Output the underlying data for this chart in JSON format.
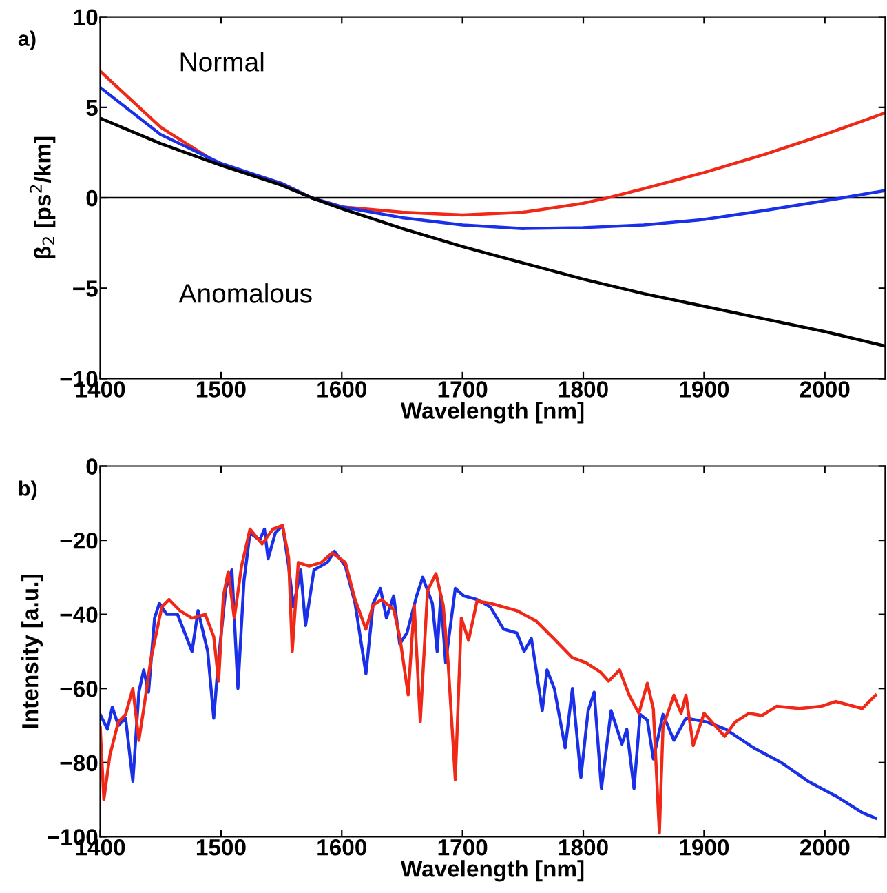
{
  "chart_data": [
    {
      "type": "line",
      "xlabel": "Wavelength [nm]",
      "ylabel": "β$_{2}$ [ps$^{2}$/km]",
      "annotations": [
        "a)",
        "Normal",
        "Anomalous"
      ],
      "xlim": [
        1400,
        2050
      ],
      "xticks": [
        1400,
        1500,
        1600,
        1700,
        1800,
        1900,
        2000
      ],
      "ylim": [
        -10,
        10
      ],
      "yticks": [
        -10,
        -5,
        0,
        5,
        10
      ],
      "grid": false,
      "legend": false,
      "marker": "none",
      "line_style": "solid",
      "ref_lines": [
        {
          "axis": "y",
          "value": 0,
          "color": "#000000"
        }
      ],
      "series": [
        {
          "color": "#f02818",
          "x": [
            1400,
            1450,
            1500,
            1550,
            1575,
            1600,
            1650,
            1700,
            1750,
            1800,
            1820,
            1850,
            1900,
            1950,
            2000,
            2050
          ],
          "values": [
            7.0,
            3.9,
            1.8,
            0.8,
            0.0,
            -0.5,
            -0.8,
            -0.95,
            -0.8,
            -0.3,
            0.0,
            0.5,
            1.4,
            2.4,
            3.5,
            4.7
          ]
        },
        {
          "color": "#1a30e8",
          "x": [
            1400,
            1450,
            1500,
            1550,
            1575,
            1600,
            1650,
            1700,
            1750,
            1800,
            1850,
            1900,
            1950,
            2015,
            2050
          ],
          "values": [
            6.1,
            3.5,
            1.9,
            0.8,
            0.0,
            -0.5,
            -1.1,
            -1.5,
            -1.7,
            -1.65,
            -1.5,
            -1.2,
            -0.7,
            0.0,
            0.4
          ]
        },
        {
          "color": "#000000",
          "x": [
            1400,
            1450,
            1500,
            1550,
            1575,
            1600,
            1650,
            1700,
            1750,
            1800,
            1850,
            1900,
            1950,
            2000,
            2050
          ],
          "values": [
            4.4,
            3.0,
            1.8,
            0.7,
            0.0,
            -0.6,
            -1.7,
            -2.7,
            -3.6,
            -4.5,
            -5.3,
            -6.0,
            -6.7,
            -7.4,
            -8.2
          ]
        }
      ]
    },
    {
      "type": "line",
      "xlabel": "Wavelength [nm]",
      "ylabel": "Intensity [a.u.]",
      "annotations": [
        "b)"
      ],
      "xlim": [
        1400,
        2050
      ],
      "xticks": [
        1400,
        1500,
        1600,
        1700,
        1800,
        1900,
        2000
      ],
      "ylim": [
        -100,
        0
      ],
      "yticks": [
        -100,
        -80,
        -60,
        -40,
        -20,
        0
      ],
      "grid": false,
      "legend": false,
      "marker": "none",
      "line_style": "solid",
      "series": [
        {
          "color": "#1a30e8",
          "x": [
            1400,
            1406,
            1410,
            1415,
            1421,
            1427,
            1432,
            1436,
            1440,
            1445,
            1449,
            1455,
            1464,
            1476,
            1481,
            1489,
            1494,
            1498,
            1504,
            1509,
            1514,
            1519,
            1524,
            1532,
            1536,
            1539,
            1545,
            1551,
            1556,
            1560,
            1566,
            1570,
            1577,
            1588,
            1594,
            1603,
            1611,
            1620,
            1626,
            1632,
            1637,
            1643,
            1648,
            1654,
            1662,
            1667,
            1675,
            1679,
            1682,
            1686,
            1694,
            1701,
            1712,
            1723,
            1734,
            1745,
            1751,
            1757,
            1761,
            1766,
            1770,
            1776,
            1785,
            1791,
            1798,
            1804,
            1809,
            1815,
            1823,
            1832,
            1836,
            1842,
            1847,
            1853,
            1858,
            1866,
            1875,
            1885,
            1902,
            1918,
            1941,
            1964,
            1986,
            2009,
            2031,
            2042
          ],
          "values": [
            -67,
            -71,
            -65,
            -70,
            -68,
            -85,
            -61,
            -55,
            -61,
            -41,
            -37,
            -40,
            -40,
            -50,
            -39,
            -50,
            -68,
            -52,
            -33,
            -28,
            -60,
            -31,
            -18,
            -20,
            -17,
            -25,
            -18,
            -16,
            -27,
            -38,
            -28,
            -43,
            -28,
            -26,
            -23,
            -27,
            -37,
            -56,
            -37,
            -33,
            -41,
            -35,
            -48,
            -45,
            -35,
            -30,
            -37,
            -50,
            -35,
            -53,
            -33,
            -35,
            -36,
            -38,
            -44,
            -45,
            -50,
            -46.5,
            -55,
            -66,
            -55,
            -60,
            -76,
            -60,
            -84,
            -66,
            -61,
            -87,
            -66,
            -75,
            -71,
            -87,
            -67,
            -68.5,
            -79,
            -67,
            -74,
            -68,
            -69,
            -71,
            -76,
            -80,
            -85,
            -89,
            -93.5,
            -95
          ]
        },
        {
          "color": "#f02818",
          "x": [
            1400,
            1403,
            1408,
            1415,
            1421,
            1427,
            1432,
            1436,
            1442,
            1451,
            1457,
            1466,
            1476,
            1487,
            1494,
            1498,
            1502,
            1506,
            1511,
            1517,
            1524,
            1534,
            1543,
            1551,
            1556,
            1559,
            1564,
            1573,
            1583,
            1592,
            1603,
            1611,
            1620,
            1626,
            1633,
            1643,
            1648,
            1655,
            1660,
            1665,
            1671,
            1678,
            1684,
            1688,
            1694,
            1699,
            1705,
            1712,
            1723,
            1745,
            1761,
            1776,
            1791,
            1802,
            1814,
            1821,
            1830,
            1838,
            1846,
            1853,
            1858,
            1863,
            1866,
            1875,
            1881,
            1885,
            1891,
            1900,
            1917,
            1926,
            1937,
            1948,
            1960,
            1979,
            1997,
            2009,
            2031,
            2042
          ],
          "values": [
            -70.6,
            -90,
            -78,
            -69,
            -67,
            -60,
            -74,
            -65.5,
            -52,
            -38,
            -36,
            -39,
            -41,
            -40,
            -46,
            -58,
            -35,
            -28.5,
            -41,
            -27,
            -17,
            -21,
            -17,
            -16,
            -24.7,
            -50,
            -26,
            -27,
            -26,
            -23.4,
            -26,
            -36,
            -44,
            -37.5,
            -36,
            -38.7,
            -46,
            -61.7,
            -37.5,
            -69,
            -33.6,
            -29,
            -37.5,
            -52.7,
            -84.6,
            -41,
            -47,
            -36.4,
            -37,
            -39,
            -41.8,
            -46.7,
            -51.7,
            -53,
            -55.5,
            -58,
            -55,
            -61.8,
            -66.7,
            -58.6,
            -65.5,
            -99,
            -70.4,
            -61.8,
            -66.7,
            -61.8,
            -75.4,
            -66.7,
            -72.9,
            -69,
            -66.7,
            -67.3,
            -64.8,
            -65.4,
            -64.8,
            -63.5,
            -65.4,
            -61.8
          ]
        }
      ]
    }
  ]
}
